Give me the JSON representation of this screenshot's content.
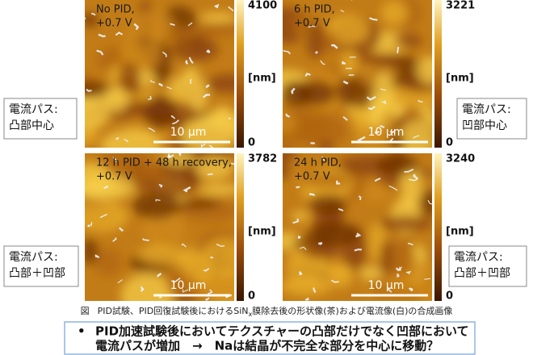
{
  "panels": [
    {
      "label_lines": [
        "No PID,",
        "+0.7 V"
      ],
      "colorbar": {
        "max": 4100,
        "unit": "[nm]",
        "min": 0
      },
      "scale_bar": "10 μm"
    },
    {
      "label_lines": [
        "6 h PID,",
        "+0.7 V"
      ],
      "colorbar": {
        "max": 3221,
        "unit": "[nm]",
        "min": 0
      },
      "scale_bar": "10 μm"
    },
    {
      "label_lines": [
        "12 h PID + 48 h recovery,",
        "+0.7 V"
      ],
      "colorbar": {
        "max": 3782,
        "unit": "[nm]",
        "min": 0
      },
      "scale_bar": "10 μm"
    },
    {
      "label_lines": [
        "24 h PID,",
        "+0.7 V"
      ],
      "colorbar": {
        "max": 3240,
        "unit": "[nm]",
        "min": 0
      },
      "scale_bar": "10 μm"
    }
  ],
  "side_labels": [
    {
      "lines": [
        "電流パス:",
        "凸部中心"
      ]
    },
    {
      "lines": [
        "電流パス:",
        "凹部中心"
      ]
    },
    {
      "lines": [
        "電流パス:",
        "凸部＋凹部"
      ]
    },
    {
      "lines": [
        "電流パス:",
        "凸部＋凹部"
      ]
    }
  ],
  "caption": {
    "prefix": "図",
    "text_before": "PID試験、PID回復試験後におけるSiN",
    "subscript": "x",
    "text_after": "膜除去後の形状像(茶)および電流像(白)の合成画像"
  },
  "summary": {
    "bullet": "•",
    "lines": [
      "PID加速試験後においてテクスチャーの凸部だけでなく凹部において",
      "電流パスが増加　→　Naは結晶が不完全な部分を中心に移動？"
    ]
  }
}
